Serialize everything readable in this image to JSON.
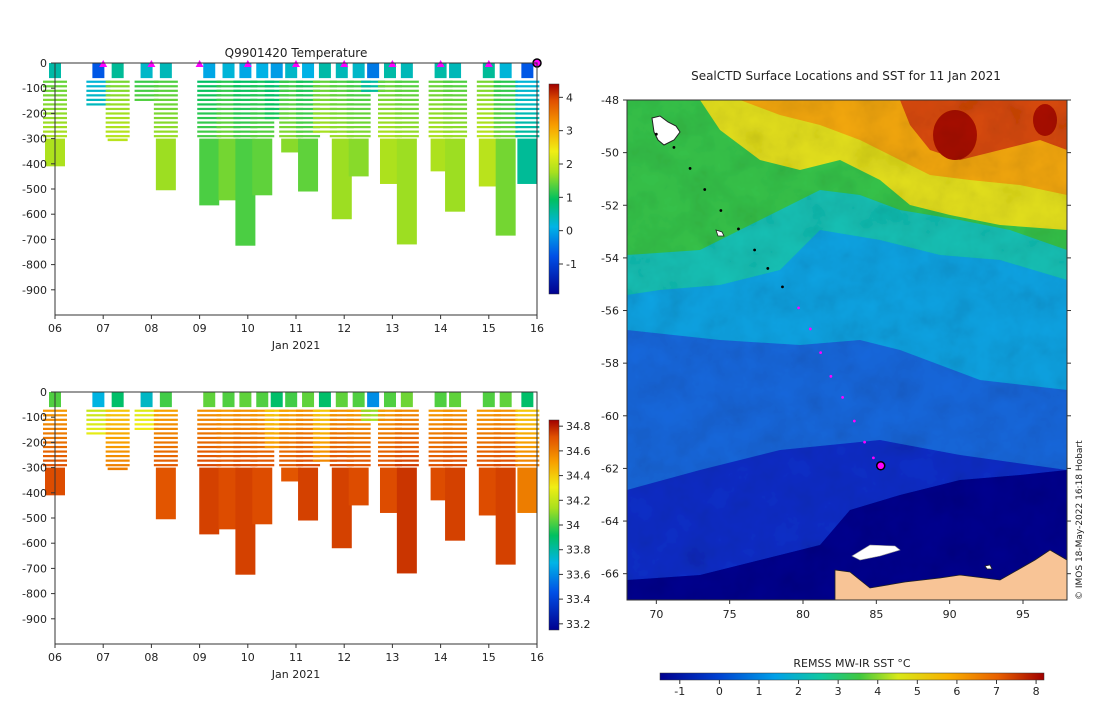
{
  "chart_data": [
    {
      "type": "heatmap",
      "title": "Q9901420  Temperature",
      "xlabel": "Jan 2021",
      "xticks": [
        "06",
        "07",
        "08",
        "09",
        "10",
        "11",
        "12",
        "13",
        "14",
        "15",
        "16"
      ],
      "xlim": [
        6,
        16
      ],
      "ylim": [
        -1000,
        0
      ],
      "yticks": [
        0,
        -100,
        -200,
        -300,
        -400,
        -500,
        -600,
        -700,
        -800,
        -900
      ],
      "colorbar": {
        "ticks": [
          4,
          3,
          2,
          1,
          0,
          -1
        ],
        "range": [
          -1.9,
          4.4
        ]
      },
      "surface_markers_x": [
        7.0,
        8.0,
        9.0,
        10.0,
        11.0,
        12.0,
        13.0,
        14.0,
        15.0
      ],
      "current_marker_x": 16.0,
      "profiles": [
        {
          "x": 6.0,
          "max_depth": 410,
          "value": 1.8
        },
        {
          "x": 6.9,
          "max_depth": 165,
          "value": 0.6
        },
        {
          "x": 7.3,
          "max_depth": 310,
          "value": 1.9
        },
        {
          "x": 7.9,
          "max_depth": 155,
          "value": 1.6
        },
        {
          "x": 8.3,
          "max_depth": 505,
          "value": 1.7
        },
        {
          "x": 9.2,
          "max_depth": 565,
          "value": 1.3
        },
        {
          "x": 9.6,
          "max_depth": 545,
          "value": 1.5
        },
        {
          "x": 9.95,
          "max_depth": 725,
          "value": 1.3
        },
        {
          "x": 10.3,
          "max_depth": 525,
          "value": 1.4
        },
        {
          "x": 10.6,
          "max_depth": 230,
          "value": 1.2
        },
        {
          "x": 10.9,
          "max_depth": 355,
          "value": 1.6
        },
        {
          "x": 11.25,
          "max_depth": 510,
          "value": 1.4
        },
        {
          "x": 11.6,
          "max_depth": 285,
          "value": 1.8
        },
        {
          "x": 11.95,
          "max_depth": 620,
          "value": 1.7
        },
        {
          "x": 12.3,
          "max_depth": 450,
          "value": 1.6
        },
        {
          "x": 12.6,
          "max_depth": 110,
          "value": 0.9
        },
        {
          "x": 12.95,
          "max_depth": 480,
          "value": 1.8
        },
        {
          "x": 13.3,
          "max_depth": 720,
          "value": 1.7
        },
        {
          "x": 14.0,
          "max_depth": 430,
          "value": 1.8
        },
        {
          "x": 14.3,
          "max_depth": 590,
          "value": 1.7
        },
        {
          "x": 15.0,
          "max_depth": 490,
          "value": 1.9
        },
        {
          "x": 15.35,
          "max_depth": 685,
          "value": 1.5
        },
        {
          "x": 15.8,
          "max_depth": 480,
          "value": 0.6
        }
      ]
    },
    {
      "type": "heatmap",
      "xlabel": "Jan 2021",
      "xticks": [
        "06",
        "07",
        "08",
        "09",
        "10",
        "11",
        "12",
        "13",
        "14",
        "15",
        "16"
      ],
      "xlim": [
        6,
        16
      ],
      "ylim": [
        -1000,
        0
      ],
      "yticks": [
        0,
        -100,
        -200,
        -300,
        -400,
        -500,
        -600,
        -700,
        -800,
        -900
      ],
      "colorbar": {
        "ticks": [
          34.8,
          34.6,
          34.4,
          34.2,
          34,
          33.8,
          33.6,
          33.4,
          33.2
        ],
        "range": [
          33.15,
          34.85
        ]
      },
      "profiles": [
        {
          "x": 6.0,
          "max_depth": 410,
          "value": 34.72
        },
        {
          "x": 6.9,
          "max_depth": 165,
          "value": 34.4
        },
        {
          "x": 7.3,
          "max_depth": 310,
          "value": 34.6
        },
        {
          "x": 7.9,
          "max_depth": 155,
          "value": 34.45
        },
        {
          "x": 8.3,
          "max_depth": 505,
          "value": 34.7
        },
        {
          "x": 9.2,
          "max_depth": 565,
          "value": 34.74
        },
        {
          "x": 9.6,
          "max_depth": 545,
          "value": 34.72
        },
        {
          "x": 9.95,
          "max_depth": 725,
          "value": 34.74
        },
        {
          "x": 10.3,
          "max_depth": 525,
          "value": 34.72
        },
        {
          "x": 10.6,
          "max_depth": 230,
          "value": 34.6
        },
        {
          "x": 10.9,
          "max_depth": 355,
          "value": 34.7
        },
        {
          "x": 11.25,
          "max_depth": 510,
          "value": 34.74
        },
        {
          "x": 11.6,
          "max_depth": 285,
          "value": 34.6
        },
        {
          "x": 11.95,
          "max_depth": 620,
          "value": 34.74
        },
        {
          "x": 12.3,
          "max_depth": 450,
          "value": 34.72
        },
        {
          "x": 12.6,
          "max_depth": 110,
          "value": 34.3
        },
        {
          "x": 12.95,
          "max_depth": 480,
          "value": 34.72
        },
        {
          "x": 13.3,
          "max_depth": 720,
          "value": 34.76
        },
        {
          "x": 14.0,
          "max_depth": 430,
          "value": 34.72
        },
        {
          "x": 14.3,
          "max_depth": 590,
          "value": 34.74
        },
        {
          "x": 15.0,
          "max_depth": 490,
          "value": 34.72
        },
        {
          "x": 15.35,
          "max_depth": 685,
          "value": 34.74
        },
        {
          "x": 15.8,
          "max_depth": 480,
          "value": 34.6
        }
      ]
    },
    {
      "type": "heatmap",
      "title": "SealCTD Surface Locations and SST for 11 Jan 2021",
      "xticks": [
        70,
        75,
        80,
        85,
        90,
        95
      ],
      "yticks": [
        -48,
        -50,
        -52,
        -54,
        -56,
        -58,
        -60,
        -62,
        -64,
        -66
      ],
      "xlim": [
        68,
        98
      ],
      "ylim": [
        -67,
        -48
      ],
      "colorbar": {
        "label": "REMSS MW-IR SST °C",
        "ticks": [
          -1,
          0,
          1,
          2,
          3,
          4,
          5,
          6,
          7,
          8
        ],
        "range": [
          -1.5,
          8.2
        ]
      },
      "track": [
        {
          "lon": 70.0,
          "lat": -49.3
        },
        {
          "lon": 71.2,
          "lat": -49.8
        },
        {
          "lon": 72.3,
          "lat": -50.6
        },
        {
          "lon": 73.3,
          "lat": -51.4
        },
        {
          "lon": 74.4,
          "lat": -52.2
        },
        {
          "lon": 75.6,
          "lat": -52.9
        },
        {
          "lon": 76.7,
          "lat": -53.7
        },
        {
          "lon": 77.6,
          "lat": -54.4
        },
        {
          "lon": 78.6,
          "lat": -55.1
        },
        {
          "lon": 79.7,
          "lat": -55.9
        },
        {
          "lon": 80.5,
          "lat": -56.7
        },
        {
          "lon": 81.2,
          "lat": -57.6
        },
        {
          "lon": 81.9,
          "lat": -58.5
        },
        {
          "lon": 82.7,
          "lat": -59.3
        },
        {
          "lon": 83.5,
          "lat": -60.2
        },
        {
          "lon": 84.2,
          "lat": -61.0
        },
        {
          "lon": 84.8,
          "lat": -61.6
        }
      ],
      "current_location": {
        "lon": 85.3,
        "lat": -61.9
      },
      "credit": "© IMOS 18-May-2022 16:18 Hobart"
    }
  ]
}
